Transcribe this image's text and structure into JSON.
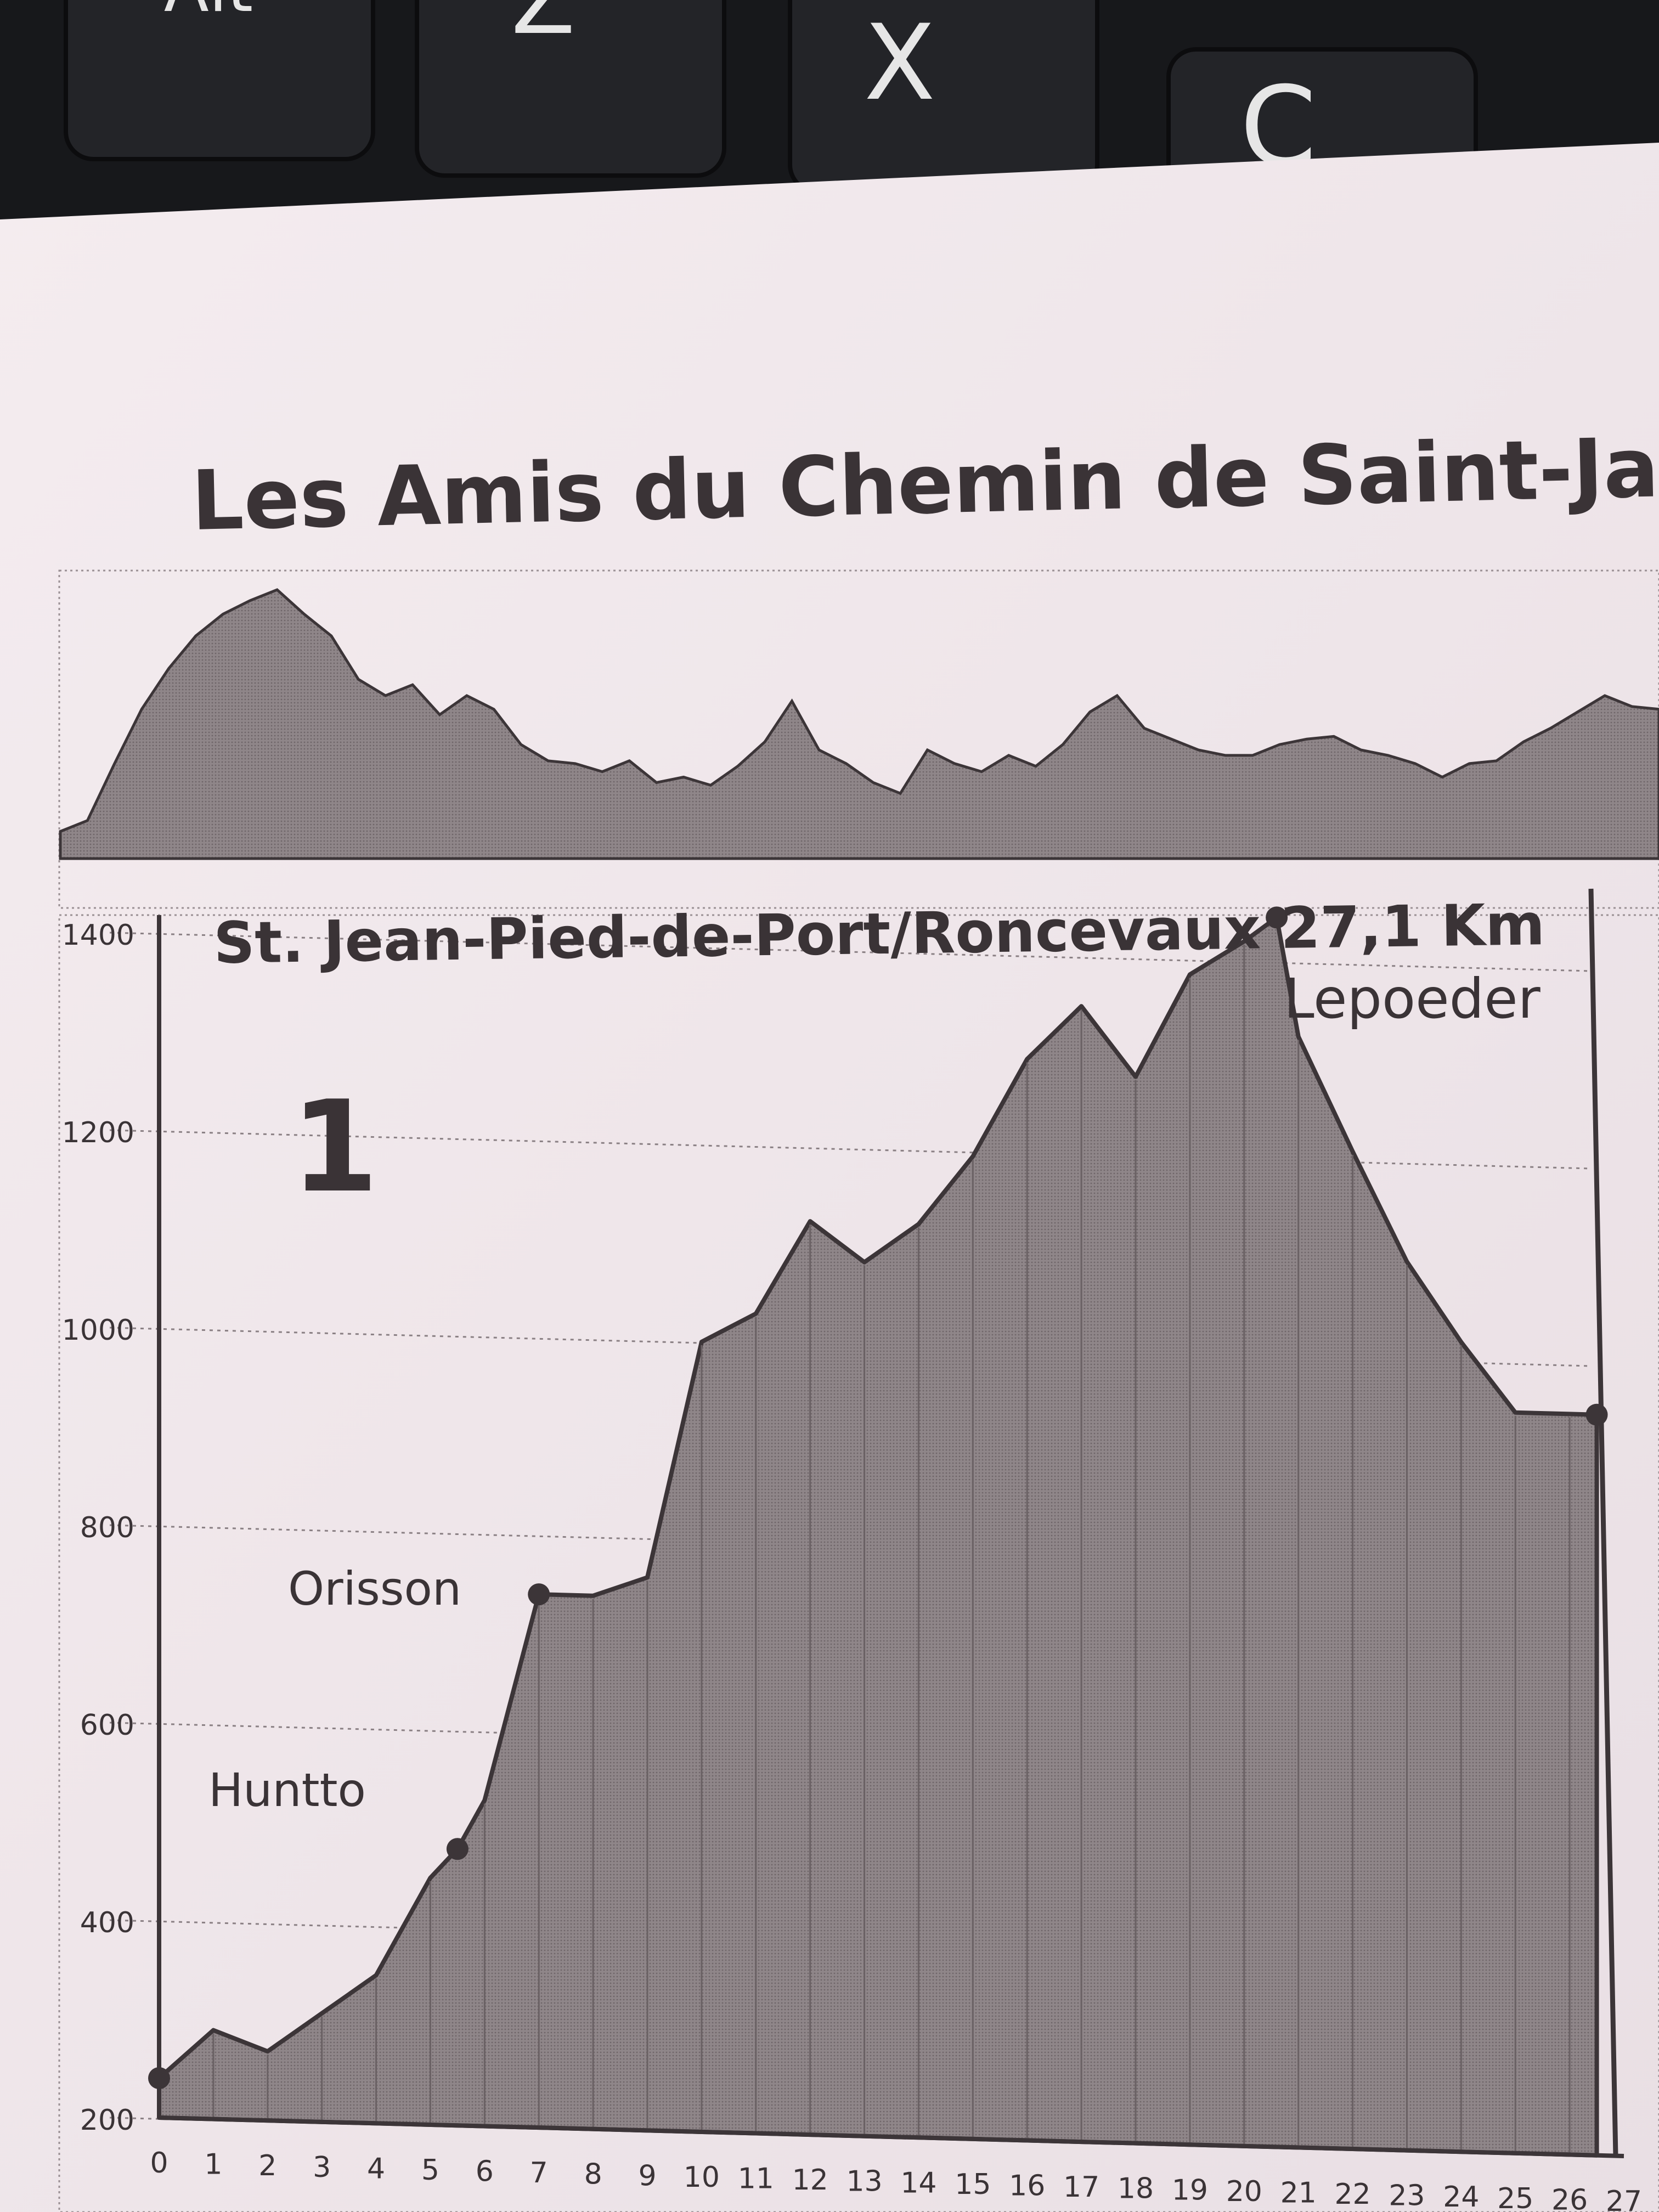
{
  "keyboard": {
    "keys": [
      {
        "label": "Alt"
      },
      {
        "label": "Z"
      },
      {
        "label": "X"
      },
      {
        "label": "C"
      }
    ]
  },
  "header": {
    "title": "Les Amis du Chemin de Saint-Jacqu"
  },
  "overview_profile": {
    "type": "area",
    "values": [
      0.1,
      0.14,
      0.35,
      0.55,
      0.7,
      0.82,
      0.9,
      0.95,
      0.99,
      0.9,
      0.82,
      0.66,
      0.6,
      0.64,
      0.53,
      0.6,
      0.55,
      0.42,
      0.36,
      0.35,
      0.32,
      0.36,
      0.28,
      0.3,
      0.27,
      0.34,
      0.43,
      0.58,
      0.4,
      0.35,
      0.28,
      0.24,
      0.4,
      0.35,
      0.32,
      0.38,
      0.34,
      0.42,
      0.54,
      0.6,
      0.48,
      0.44,
      0.4,
      0.38,
      0.38,
      0.42,
      0.44,
      0.45,
      0.4,
      0.38,
      0.35,
      0.3,
      0.35,
      0.36,
      0.43,
      0.48,
      0.54,
      0.6,
      0.56,
      0.55
    ]
  },
  "chart_data": {
    "type": "area",
    "title": "St. Jean-Pied-de-Port/Roncevaux 27,1 Km",
    "stage_number": "1",
    "xlabel": "",
    "ylabel": "",
    "x_ticks": [
      "0",
      "1",
      "2",
      "3",
      "4",
      "5",
      "6",
      "7",
      "8",
      "9",
      "10",
      "11",
      "12",
      "13",
      "14",
      "15",
      "16",
      "17",
      "18",
      "19",
      "20",
      "21",
      "22",
      "23",
      "24",
      "25",
      "26",
      "27"
    ],
    "y_ticks": [
      "200",
      "400",
      "600",
      "800",
      "1000",
      "1200",
      "1400"
    ],
    "xlim": [
      0,
      27
    ],
    "ylim": [
      200,
      1500
    ],
    "grid": true,
    "x": [
      0,
      1,
      2,
      3,
      4,
      5,
      5.5,
      6,
      7,
      8,
      9,
      10,
      11,
      12,
      13,
      14,
      15,
      16,
      17,
      18,
      19,
      20,
      20.6,
      21,
      22,
      23,
      24,
      25,
      26,
      26.5
    ],
    "y": [
      240,
      290,
      270,
      310,
      350,
      450,
      480,
      530,
      740,
      740,
      760,
      1000,
      1030,
      1125,
      1085,
      1125,
      1195,
      1295,
      1350,
      1280,
      1385,
      1420,
      1445,
      1325,
      1210,
      1100,
      1020,
      950,
      950,
      950
    ],
    "waypoints": [
      {
        "name": "",
        "x": 0,
        "y": 240
      },
      {
        "name": "Huntto",
        "x": 5.5,
        "y": 480
      },
      {
        "name": "Orisson",
        "x": 7,
        "y": 740
      },
      {
        "name": "Lepoeder",
        "x": 20.6,
        "y": 1445
      },
      {
        "name": "",
        "x": 26.5,
        "y": 950
      }
    ]
  },
  "colors": {
    "paper": "#f1e8ec",
    "fill": "#8f8689",
    "line": "#3c3538",
    "text": "#3a3336",
    "keyboard": "#17181b"
  }
}
